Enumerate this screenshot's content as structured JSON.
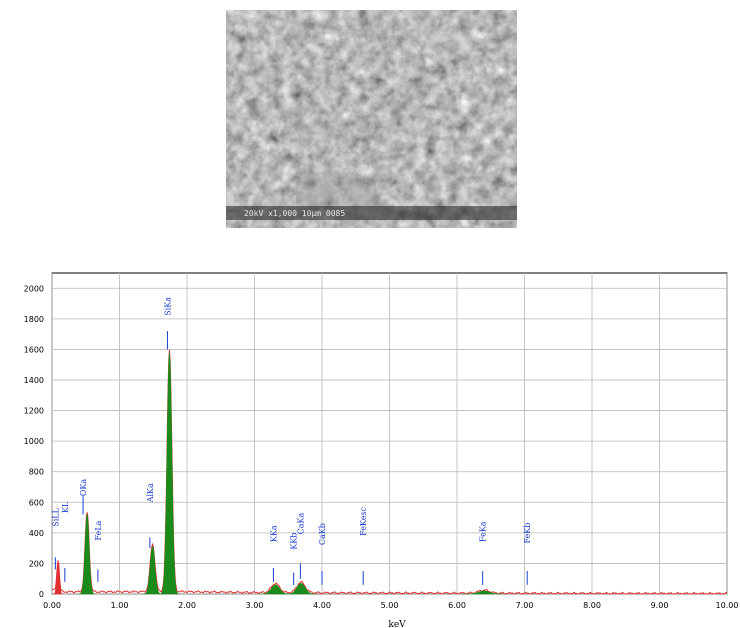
{
  "micrograph": {
    "scale_text": "20kV   x1,000   10µm   0085"
  },
  "chart_data": {
    "type": "area",
    "xlabel": "keV",
    "ylabel": "",
    "xlim": [
      0,
      10
    ],
    "ylim": [
      0,
      2100
    ],
    "x_ticks": [
      "0.00",
      "1.00",
      "2.00",
      "3.00",
      "4.00",
      "5.00",
      "6.00",
      "7.00",
      "8.00",
      "9.00",
      "10.00"
    ],
    "y_ticks": [
      "0",
      "200",
      "400",
      "600",
      "800",
      "1000",
      "1200",
      "1400",
      "1600",
      "1800",
      "2000"
    ],
    "grid": true,
    "colors": {
      "spectrum_line": "#e03030",
      "peak_fill": "#1a8a1a",
      "marker": "#1a3ecf"
    },
    "peaks": [
      {
        "center": 0.09,
        "height": 210,
        "width": 0.018,
        "color": "red"
      },
      {
        "center": 0.52,
        "height": 520,
        "width": 0.03,
        "color": "green"
      },
      {
        "center": 1.49,
        "height": 310,
        "width": 0.035,
        "color": "green"
      },
      {
        "center": 1.74,
        "height": 1580,
        "width": 0.035,
        "color": "green"
      },
      {
        "center": 3.31,
        "height": 60,
        "width": 0.06,
        "color": "green"
      },
      {
        "center": 3.69,
        "height": 70,
        "width": 0.06,
        "color": "green"
      },
      {
        "center": 6.4,
        "height": 20,
        "width": 0.08,
        "color": "green"
      }
    ],
    "background_level": 15,
    "labels": [
      {
        "text": "SiLL",
        "x": 0.05,
        "y": 440,
        "tick_top": 240,
        "tick_bot": 160
      },
      {
        "text": "KL",
        "x": 0.19,
        "y": 530,
        "tick_top": 170,
        "tick_bot": 80
      },
      {
        "text": "OKa",
        "x": 0.46,
        "y": 640,
        "tick_top": 640,
        "tick_bot": 520
      },
      {
        "text": "FeLa",
        "x": 0.68,
        "y": 350,
        "tick_top": 160,
        "tick_bot": 80
      },
      {
        "text": "AlKa",
        "x": 1.45,
        "y": 600,
        "tick_top": 370,
        "tick_bot": 300
      },
      {
        "text": "SiKa",
        "x": 1.71,
        "y": 1820,
        "tick_top": 1720,
        "tick_bot": 1600
      },
      {
        "text": "KKa",
        "x": 3.28,
        "y": 340,
        "tick_top": 170,
        "tick_bot": 80
      },
      {
        "text": "KKb",
        "x": 3.58,
        "y": 290,
        "tick_top": 140,
        "tick_bot": 60
      },
      {
        "text": "CaKa",
        "x": 3.68,
        "y": 390,
        "tick_top": 200,
        "tick_bot": 100
      },
      {
        "text": "CaKb",
        "x": 4.0,
        "y": 320,
        "tick_top": 150,
        "tick_bot": 60
      },
      {
        "text": "FeKesc",
        "x": 4.61,
        "y": 380,
        "tick_top": 150,
        "tick_bot": 60
      },
      {
        "text": "FeKa",
        "x": 6.38,
        "y": 340,
        "tick_top": 150,
        "tick_bot": 60
      },
      {
        "text": "FeKb",
        "x": 7.04,
        "y": 330,
        "tick_top": 150,
        "tick_bot": 60
      }
    ]
  }
}
